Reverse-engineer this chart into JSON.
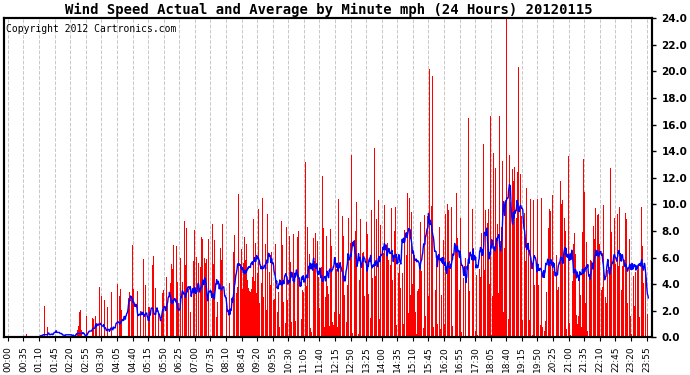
{
  "title": "Wind Speed Actual and Average by Minute mph (24 Hours) 20120115",
  "copyright": "Copyright 2012 Cartronics.com",
  "ylim": [
    0,
    24.0
  ],
  "yticks": [
    0.0,
    2.0,
    4.0,
    6.0,
    8.0,
    10.0,
    12.0,
    14.0,
    16.0,
    18.0,
    20.0,
    22.0,
    24.0
  ],
  "bar_color": "#ff0000",
  "avg_color": "#0000ff",
  "background_color": "#ffffff",
  "grid_color": "#c8c8c8",
  "title_fontsize": 10,
  "copyright_fontsize": 7,
  "tick_fontsize": 6.5
}
